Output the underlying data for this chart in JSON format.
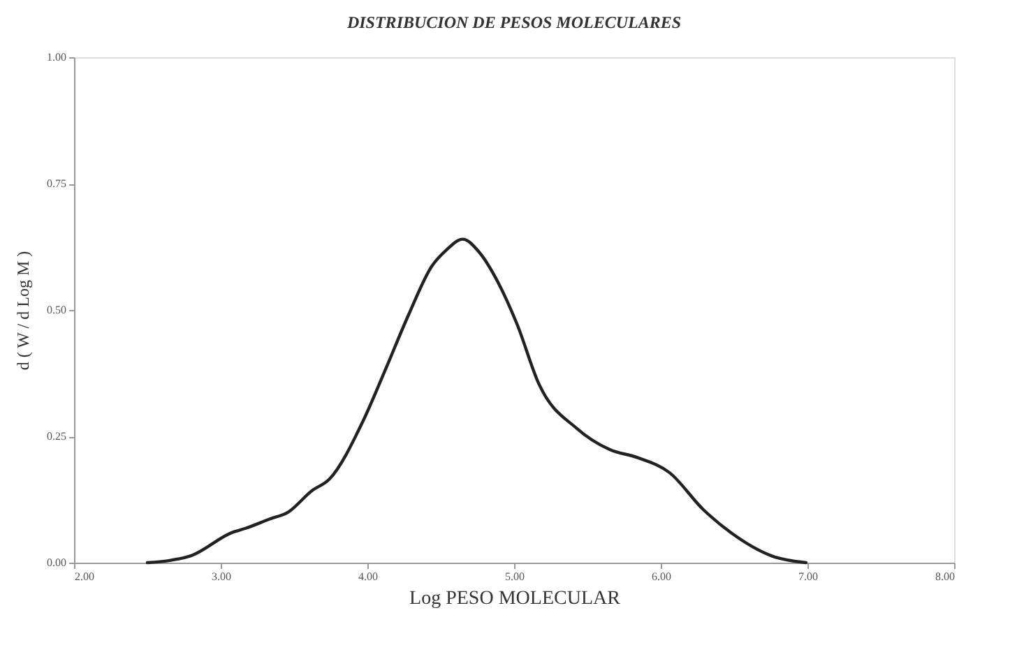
{
  "chart_data": {
    "type": "line",
    "title": "DISTRIBUCION DE PESOS MOLECULARES",
    "xlabel": "Log PESO MOLECULAR",
    "ylabel": "d ( W / d Log M )",
    "x": [
      2.5,
      2.79,
      3.08,
      3.17,
      3.33,
      3.46,
      3.62,
      3.74,
      3.97,
      4.12,
      4.28,
      4.44,
      4.54,
      4.65,
      4.76,
      4.89,
      5.02,
      5.17,
      5.43,
      5.65,
      5.84,
      6.06,
      6.29,
      6.48,
      6.76,
      6.99
    ],
    "series": [
      {
        "color": "#222222",
        "values": [
          0.0,
          0.013,
          0.06,
          0.068,
          0.086,
          0.1,
          0.142,
          0.165,
          0.28,
          0.38,
          0.49,
          0.587,
          0.619,
          0.64,
          0.615,
          0.555,
          0.472,
          0.353,
          0.265,
          0.224,
          0.208,
          0.178,
          0.105,
          0.059,
          0.013,
          0.0
        ]
      }
    ],
    "xlim": [
      2,
      8
    ],
    "ylim": [
      0,
      1
    ],
    "xticks": [
      {
        "value": 2,
        "label": "2.00"
      },
      {
        "value": 3,
        "label": "3.00"
      },
      {
        "value": 4,
        "label": "4.00"
      },
      {
        "value": 5,
        "label": "5.00"
      },
      {
        "value": 6,
        "label": "6.00"
      },
      {
        "value": 7,
        "label": "7.00"
      },
      {
        "value": 8,
        "label": "8.00"
      }
    ],
    "yticks": [
      {
        "value": 0,
        "label": "0.00"
      },
      {
        "value": 0.25,
        "label": "0.25"
      },
      {
        "value": 0.5,
        "label": "0.50"
      },
      {
        "value": 0.75,
        "label": "0.75"
      },
      {
        "value": 1,
        "label": "1.00"
      }
    ],
    "grid": false,
    "marker": "none",
    "line_style": "solid"
  }
}
